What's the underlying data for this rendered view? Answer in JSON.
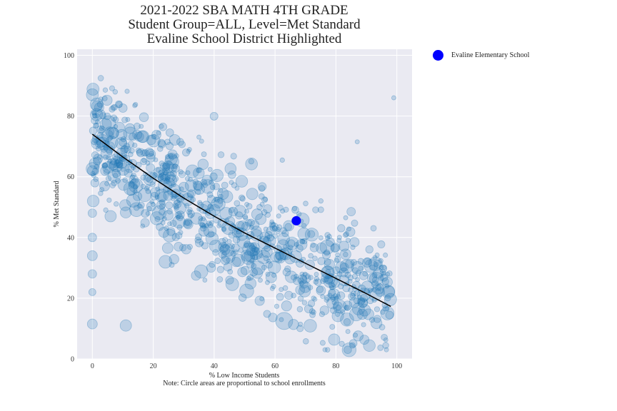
{
  "title_lines": [
    "2021-2022 SBA MATH 4TH GRADE",
    "Student Group=ALL, Level=Met Standard",
    "Evaline School District Highlighted"
  ],
  "legend": {
    "label": "Evaline Elementary School",
    "color": "#0000ff"
  },
  "xlabel": "% Low Income Students",
  "note": "Note: Circle areas are proportional to school enrollments",
  "ylabel": "% Met Standard",
  "colors": {
    "scatter": "#1f77b4",
    "highlight": "#0000ff",
    "trend": "#000000",
    "background": "#eaeaf2",
    "grid": "#ffffff"
  },
  "chart_data": {
    "type": "scatter",
    "xlim": [
      -5,
      105
    ],
    "ylim": [
      0,
      102
    ],
    "xticks": [
      0,
      20,
      40,
      60,
      80,
      100
    ],
    "yticks": [
      0,
      20,
      40,
      60,
      80,
      100
    ],
    "grid": true,
    "legend_position": "outside-right",
    "highlight": {
      "name": "Evaline Elementary School",
      "x": 67,
      "y": 45.5
    },
    "trend_line": [
      [
        0,
        74
      ],
      [
        10,
        66.5
      ],
      [
        20,
        59.5
      ],
      [
        30,
        53
      ],
      [
        40,
        47
      ],
      [
        50,
        41.5
      ],
      [
        60,
        36.5
      ],
      [
        70,
        31.5
      ],
      [
        80,
        26.5
      ],
      [
        90,
        21.5
      ],
      [
        98,
        17.3
      ]
    ],
    "scatter_summary": "Several hundred schools; circle area proportional to enrollment; downward trend from ~75% met at 0% low income to ~17% at 98%."
  }
}
